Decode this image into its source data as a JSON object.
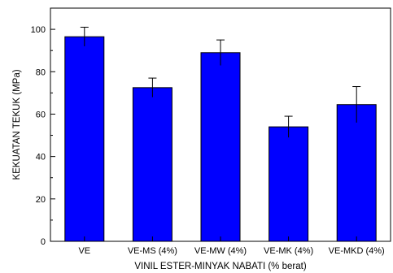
{
  "chart_data": {
    "type": "bar",
    "categories": [
      "VE",
      "VE-MS (4%)",
      "VE-MW (4%)",
      "VE-MK (4%)",
      "VE-MKD (4%)"
    ],
    "values": [
      96.5,
      72.5,
      89,
      54,
      64.5
    ],
    "errors": [
      4.5,
      4.5,
      6,
      5,
      8.5
    ],
    "xlabel": "VINIL ESTER-MINYAK NABATI (% berat)",
    "ylabel": "KEKUATAN TEKUK (MPa)",
    "ylim": [
      0,
      110
    ],
    "yticks": [
      0,
      20,
      40,
      60,
      80,
      100
    ],
    "bar_color": "#0000ff",
    "grid": false
  }
}
